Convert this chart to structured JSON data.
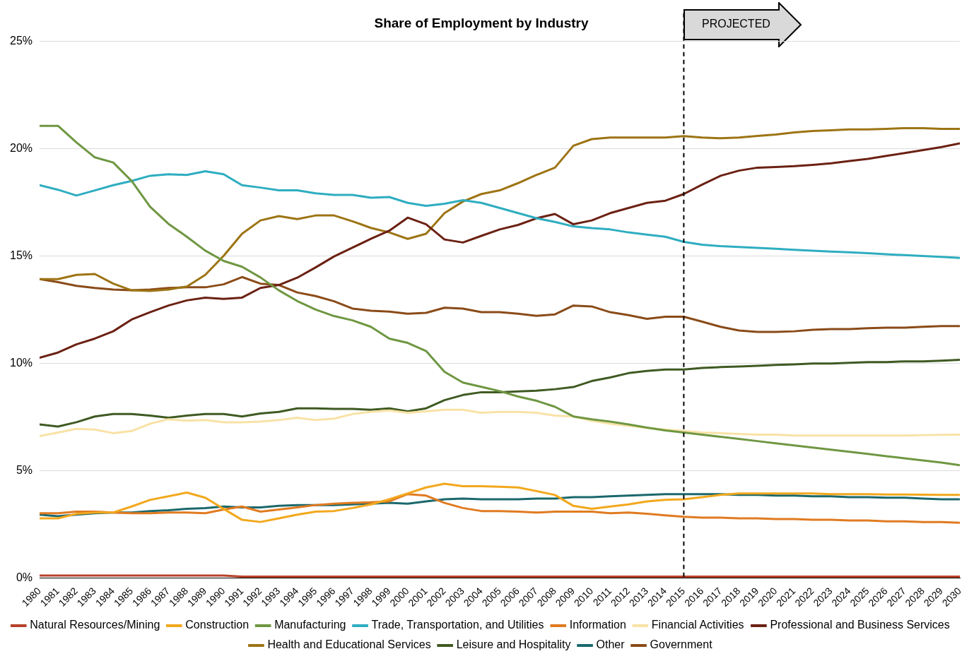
{
  "chart_data": {
    "type": "line",
    "title": "Share of Employment by Industry",
    "x": [
      1980,
      1981,
      1982,
      1983,
      1984,
      1985,
      1986,
      1987,
      1988,
      1989,
      1990,
      1991,
      1992,
      1993,
      1994,
      1995,
      1996,
      1997,
      1998,
      1999,
      2000,
      2001,
      2002,
      2003,
      2004,
      2005,
      2006,
      2007,
      2008,
      2009,
      2010,
      2011,
      2012,
      2013,
      2014,
      2015,
      2016,
      2017,
      2018,
      2019,
      2020,
      2021,
      2022,
      2023,
      2024,
      2025,
      2026,
      2027,
      2028,
      2029,
      2030
    ],
    "xlim": [
      1980,
      2030
    ],
    "xticks": [
      1980,
      1981,
      1982,
      1983,
      1984,
      1985,
      1986,
      1987,
      1988,
      1989,
      1990,
      1991,
      1992,
      1993,
      1994,
      1995,
      1996,
      1997,
      1998,
      1999,
      2000,
      2001,
      2002,
      2003,
      2004,
      2005,
      2006,
      2007,
      2008,
      2009,
      2010,
      2011,
      2012,
      2013,
      2014,
      2015,
      2016,
      2017,
      2018,
      2019,
      2020,
      2021,
      2022,
      2023,
      2024,
      2025,
      2026,
      2027,
      2028,
      2029,
      2030
    ],
    "ylim": [
      0,
      25
    ],
    "yticks": [
      {
        "value": 0,
        "label": "0%"
      },
      {
        "value": 5,
        "label": "5%"
      },
      {
        "value": 10,
        "label": "10%"
      },
      {
        "value": 15,
        "label": "15%"
      },
      {
        "value": 20,
        "label": "20%"
      },
      {
        "value": 25,
        "label": "25%"
      }
    ],
    "grid": "y",
    "legend": "bottom",
    "marker": "none",
    "line_style": "solid",
    "ref_lines": [
      {
        "axis": "x",
        "value": 2015,
        "label": "PROJECTED",
        "color": "#000000",
        "line_style": "dashed"
      }
    ],
    "series": [
      {
        "name": "Natural Resources/Mining",
        "color": "#b8412b",
        "values": [
          0.1,
          0.1,
          0.1,
          0.1,
          0.1,
          0.1,
          0.1,
          0.1,
          0.1,
          0.1,
          0.1,
          0.05,
          0.05,
          0.05,
          0.05,
          0.05,
          0.05,
          0.05,
          0.05,
          0.05,
          0.05,
          0.05,
          0.05,
          0.05,
          0.05,
          0.05,
          0.05,
          0.05,
          0.05,
          0.05,
          0.05,
          0.05,
          0.05,
          0.05,
          0.05,
          0.05,
          0.05,
          0.05,
          0.05,
          0.05,
          0.05,
          0.05,
          0.05,
          0.05,
          0.05,
          0.05,
          0.05,
          0.05,
          0.05,
          0.05,
          0.05
        ]
      },
      {
        "name": "Construction",
        "color": "#f2a81d",
        "values": [
          2.77,
          2.77,
          2.98,
          3.04,
          3.04,
          3.32,
          3.63,
          3.8,
          3.97,
          3.73,
          3.21,
          2.7,
          2.6,
          2.77,
          2.94,
          3.08,
          3.11,
          3.25,
          3.42,
          3.66,
          3.93,
          4.21,
          4.38,
          4.27,
          4.27,
          4.24,
          4.21,
          4.04,
          3.86,
          3.35,
          3.21,
          3.32,
          3.42,
          3.56,
          3.63,
          3.66,
          3.76,
          3.86,
          3.93,
          3.93,
          3.93,
          3.93,
          3.93,
          3.9,
          3.9,
          3.9,
          3.88,
          3.88,
          3.87,
          3.86,
          3.86
        ]
      },
      {
        "name": "Manufacturing",
        "color": "#6f9742",
        "values": [
          21.07,
          21.07,
          20.3,
          19.6,
          19.36,
          18.5,
          17.3,
          16.5,
          15.9,
          15.25,
          14.77,
          14.5,
          14.0,
          13.4,
          12.9,
          12.5,
          12.2,
          12.0,
          11.7,
          11.15,
          10.95,
          10.57,
          9.6,
          9.1,
          8.9,
          8.7,
          8.45,
          8.25,
          7.97,
          7.52,
          7.39,
          7.28,
          7.15,
          7.0,
          6.87,
          6.77,
          6.67,
          6.57,
          6.47,
          6.37,
          6.27,
          6.17,
          6.07,
          5.97,
          5.87,
          5.77,
          5.67,
          5.57,
          5.47,
          5.37,
          5.25
        ]
      },
      {
        "name": "Trade, Transportation, and Utilities",
        "color": "#2eadc0",
        "values": [
          18.3,
          18.09,
          17.82,
          18.06,
          18.3,
          18.5,
          18.74,
          18.81,
          18.78,
          18.95,
          18.81,
          18.3,
          18.19,
          18.06,
          18.06,
          17.92,
          17.85,
          17.85,
          17.72,
          17.75,
          17.48,
          17.34,
          17.44,
          17.6,
          17.48,
          17.24,
          17.0,
          16.76,
          16.59,
          16.38,
          16.3,
          16.24,
          16.1,
          16.0,
          15.9,
          15.66,
          15.53,
          15.46,
          15.42,
          15.38,
          15.34,
          15.29,
          15.25,
          15.21,
          15.17,
          15.13,
          15.08,
          15.04,
          15.0,
          14.96,
          14.91
        ]
      },
      {
        "name": "Information",
        "color": "#e07b21",
        "values": [
          3.01,
          3.01,
          3.08,
          3.08,
          3.04,
          3.01,
          3.01,
          3.04,
          3.04,
          3.01,
          3.18,
          3.32,
          3.08,
          3.18,
          3.28,
          3.39,
          3.45,
          3.49,
          3.52,
          3.56,
          3.9,
          3.83,
          3.49,
          3.25,
          3.11,
          3.11,
          3.08,
          3.04,
          3.08,
          3.08,
          3.08,
          3.01,
          3.04,
          2.98,
          2.91,
          2.84,
          2.8,
          2.8,
          2.77,
          2.77,
          2.74,
          2.74,
          2.7,
          2.7,
          2.67,
          2.67,
          2.63,
          2.63,
          2.6,
          2.6,
          2.56
        ]
      },
      {
        "name": "Financial Activities",
        "color": "#f8e2a6",
        "values": [
          6.6,
          6.77,
          6.94,
          6.91,
          6.74,
          6.84,
          7.18,
          7.39,
          7.32,
          7.35,
          7.25,
          7.25,
          7.28,
          7.35,
          7.46,
          7.35,
          7.42,
          7.63,
          7.73,
          7.8,
          7.69,
          7.76,
          7.83,
          7.83,
          7.69,
          7.73,
          7.73,
          7.69,
          7.56,
          7.52,
          7.32,
          7.18,
          7.08,
          6.98,
          6.91,
          6.84,
          6.77,
          6.74,
          6.7,
          6.67,
          6.67,
          6.63,
          6.63,
          6.63,
          6.63,
          6.63,
          6.63,
          6.63,
          6.65,
          6.66,
          6.67
        ]
      },
      {
        "name": "Professional and Business Services",
        "color": "#6b2113",
        "values": [
          10.26,
          10.5,
          10.88,
          11.15,
          11.49,
          12.04,
          12.38,
          12.69,
          12.93,
          13.06,
          13.0,
          13.06,
          13.51,
          13.65,
          13.99,
          14.47,
          14.98,
          15.39,
          15.8,
          16.18,
          16.79,
          16.48,
          15.77,
          15.63,
          15.94,
          16.24,
          16.45,
          16.76,
          16.96,
          16.48,
          16.66,
          17.0,
          17.24,
          17.48,
          17.58,
          17.89,
          18.33,
          18.74,
          18.98,
          19.12,
          19.15,
          19.19,
          19.25,
          19.32,
          19.43,
          19.53,
          19.67,
          19.8,
          19.94,
          20.08,
          20.25
        ]
      },
      {
        "name": "Health and Educational Services",
        "color": "#9d7414",
        "values": [
          13.92,
          13.92,
          14.12,
          14.16,
          13.71,
          13.4,
          13.37,
          13.44,
          13.58,
          14.12,
          15.01,
          16.04,
          16.66,
          16.86,
          16.72,
          16.89,
          16.89,
          16.62,
          16.31,
          16.1,
          15.8,
          16.04,
          17.0,
          17.54,
          17.89,
          18.06,
          18.4,
          18.78,
          19.12,
          20.14,
          20.45,
          20.52,
          20.52,
          20.52,
          20.52,
          20.59,
          20.52,
          20.49,
          20.52,
          20.6,
          20.66,
          20.76,
          20.83,
          20.86,
          20.9,
          20.9,
          20.93,
          20.96,
          20.96,
          20.93,
          20.93
        ]
      },
      {
        "name": "Leisure and Hospitality",
        "color": "#3f5a22",
        "values": [
          7.15,
          7.05,
          7.25,
          7.52,
          7.63,
          7.63,
          7.56,
          7.46,
          7.56,
          7.63,
          7.63,
          7.52,
          7.66,
          7.73,
          7.9,
          7.9,
          7.87,
          7.87,
          7.83,
          7.9,
          7.76,
          7.9,
          8.28,
          8.52,
          8.65,
          8.65,
          8.69,
          8.72,
          8.79,
          8.89,
          9.17,
          9.34,
          9.54,
          9.64,
          9.71,
          9.71,
          9.78,
          9.82,
          9.85,
          9.88,
          9.92,
          9.95,
          9.99,
          9.99,
          10.02,
          10.05,
          10.05,
          10.09,
          10.09,
          10.12,
          10.16
        ]
      },
      {
        "name": "Other",
        "color": "#1b686c",
        "values": [
          2.94,
          2.87,
          2.94,
          3.01,
          3.04,
          3.04,
          3.11,
          3.15,
          3.21,
          3.25,
          3.32,
          3.28,
          3.28,
          3.35,
          3.39,
          3.39,
          3.39,
          3.42,
          3.45,
          3.49,
          3.45,
          3.56,
          3.66,
          3.69,
          3.66,
          3.66,
          3.66,
          3.69,
          3.69,
          3.76,
          3.76,
          3.8,
          3.83,
          3.86,
          3.9,
          3.9,
          3.9,
          3.9,
          3.86,
          3.86,
          3.83,
          3.83,
          3.8,
          3.8,
          3.76,
          3.76,
          3.73,
          3.73,
          3.69,
          3.66,
          3.66
        ]
      },
      {
        "name": "Government",
        "color": "#8a4b18",
        "values": [
          13.92,
          13.78,
          13.61,
          13.51,
          13.44,
          13.4,
          13.44,
          13.51,
          13.54,
          13.54,
          13.68,
          14.02,
          13.71,
          13.65,
          13.3,
          13.13,
          12.89,
          12.55,
          12.45,
          12.41,
          12.31,
          12.35,
          12.59,
          12.55,
          12.38,
          12.38,
          12.31,
          12.21,
          12.28,
          12.69,
          12.65,
          12.38,
          12.24,
          12.07,
          12.17,
          12.17,
          11.94,
          11.7,
          11.53,
          11.46,
          11.46,
          11.49,
          11.56,
          11.59,
          11.59,
          11.63,
          11.66,
          11.66,
          11.7,
          11.73,
          11.73
        ]
      }
    ]
  }
}
